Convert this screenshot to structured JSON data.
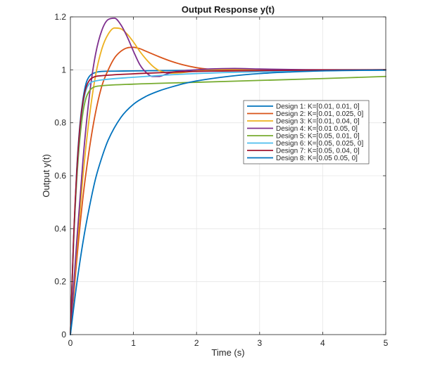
{
  "chart_data": {
    "type": "line",
    "title": "Output Response y(t)",
    "xlabel": "Time (s)",
    "ylabel": "Output y(t)",
    "xlim": [
      0,
      5
    ],
    "ylim": [
      0,
      1.2
    ],
    "xticks": [
      0,
      1,
      2,
      3,
      4,
      5
    ],
    "xtick_labels": [
      "0",
      "1",
      "2",
      "3",
      "4",
      "5"
    ],
    "yticks": [
      0,
      0.2,
      0.4,
      0.6,
      0.8,
      1.0,
      1.2
    ],
    "ytick_labels": [
      "0",
      "0.2",
      "0.4",
      "0.6",
      "0.8",
      "1",
      "1.2"
    ],
    "grid": true,
    "legend_position": "right-center",
    "series": [
      {
        "name": "Design 1: K=[0.01, 0.01, 0]",
        "color": "#0072BD",
        "x": [
          0,
          0.05,
          0.1,
          0.15,
          0.2,
          0.25,
          0.3,
          0.4,
          0.5,
          0.7,
          1.0,
          1.5,
          2.0,
          3.0,
          4.0,
          5.0
        ],
        "y": [
          0,
          0.36,
          0.62,
          0.79,
          0.89,
          0.95,
          0.975,
          0.99,
          0.994,
          0.995,
          0.996,
          0.997,
          0.998,
          0.999,
          0.9995,
          1.0
        ]
      },
      {
        "name": "Design 2: K=[0.01, 0.025, 0]",
        "color": "#D95319",
        "x": [
          0,
          0.1,
          0.2,
          0.3,
          0.4,
          0.5,
          0.6,
          0.7,
          0.8,
          0.9,
          1.0,
          1.1,
          1.2,
          1.4,
          1.6,
          1.8,
          2.0,
          2.2,
          2.5,
          3.0,
          3.5,
          4.0,
          5.0
        ],
        "y": [
          0,
          0.28,
          0.52,
          0.7,
          0.84,
          0.94,
          1.0,
          1.045,
          1.07,
          1.083,
          1.085,
          1.08,
          1.07,
          1.05,
          1.032,
          1.018,
          1.008,
          1.002,
          0.998,
          0.997,
          0.998,
          0.999,
          1.0
        ]
      },
      {
        "name": "Design 3: K=[0.01, 0.04, 0]",
        "color": "#EDB120",
        "x": [
          0,
          0.1,
          0.2,
          0.3,
          0.4,
          0.5,
          0.6,
          0.7,
          0.8,
          0.9,
          1.0,
          1.1,
          1.2,
          1.3,
          1.4,
          1.5,
          1.6,
          1.8,
          2.0,
          2.2,
          2.5,
          3.0,
          4.0,
          5.0
        ],
        "y": [
          0,
          0.32,
          0.6,
          0.82,
          0.98,
          1.08,
          1.135,
          1.158,
          1.155,
          1.135,
          1.105,
          1.07,
          1.04,
          1.015,
          0.998,
          0.99,
          0.987,
          0.99,
          0.996,
          1.0,
          1.002,
          1.001,
          1.0,
          1.0
        ]
      },
      {
        "name": "Design 4: K=[0.01 0.05, 0]",
        "color": "#7E2F8E",
        "x": [
          0,
          0.1,
          0.2,
          0.3,
          0.4,
          0.5,
          0.6,
          0.7,
          0.8,
          0.9,
          1.0,
          1.1,
          1.2,
          1.3,
          1.4,
          1.5,
          1.6,
          1.8,
          2.0,
          2.2,
          2.6,
          3.0,
          3.5,
          4.0,
          5.0
        ],
        "y": [
          0,
          0.35,
          0.66,
          0.9,
          1.06,
          1.15,
          1.19,
          1.195,
          1.17,
          1.125,
          1.07,
          1.02,
          0.99,
          0.975,
          0.975,
          0.982,
          0.99,
          0.997,
          1.0,
          1.003,
          1.005,
          1.003,
          1.001,
          1.0,
          1.0
        ]
      },
      {
        "name": "Design 5: K=[0.05, 0.01, 0]",
        "color": "#77AC30",
        "x": [
          0,
          0.05,
          0.1,
          0.15,
          0.2,
          0.25,
          0.3,
          0.35,
          0.4,
          0.5,
          1.0,
          2.0,
          3.0,
          4.0,
          5.0
        ],
        "y": [
          0,
          0.34,
          0.58,
          0.74,
          0.84,
          0.895,
          0.92,
          0.932,
          0.937,
          0.94,
          0.946,
          0.953,
          0.96,
          0.967,
          0.975
        ]
      },
      {
        "name": "Design 6: K=[0.05, 0.025, 0]",
        "color": "#4DBEEE",
        "x": [
          0,
          0.05,
          0.1,
          0.15,
          0.2,
          0.25,
          0.3,
          0.35,
          0.4,
          0.5,
          1.0,
          1.5,
          2.0,
          3.0,
          4.0,
          5.0
        ],
        "y": [
          0,
          0.35,
          0.6,
          0.77,
          0.87,
          0.925,
          0.947,
          0.955,
          0.958,
          0.962,
          0.972,
          0.98,
          0.986,
          0.993,
          0.997,
          0.999
        ]
      },
      {
        "name": "Design 7: K=[0.05, 0.04, 0]",
        "color": "#A2142F",
        "x": [
          0,
          0.05,
          0.1,
          0.15,
          0.2,
          0.25,
          0.3,
          0.35,
          0.4,
          0.5,
          1.0,
          1.5,
          2.0,
          3.0,
          4.0,
          5.0
        ],
        "y": [
          0,
          0.36,
          0.61,
          0.78,
          0.88,
          0.935,
          0.96,
          0.97,
          0.975,
          0.978,
          0.985,
          0.99,
          0.994,
          0.997,
          0.999,
          1.0
        ]
      },
      {
        "name": "Design 8: K=[0.05 0.05, 0]",
        "color": "#0072BD",
        "x": [
          0,
          0.1,
          0.2,
          0.3,
          0.4,
          0.5,
          0.6,
          0.8,
          1.0,
          1.2,
          1.4,
          1.6,
          1.8,
          2.0,
          2.5,
          3.0,
          3.5,
          4.0,
          5.0
        ],
        "y": [
          0,
          0.19,
          0.35,
          0.48,
          0.59,
          0.67,
          0.735,
          0.82,
          0.87,
          0.9,
          0.92,
          0.935,
          0.948,
          0.958,
          0.975,
          0.986,
          0.992,
          0.996,
          0.999
        ]
      }
    ]
  }
}
